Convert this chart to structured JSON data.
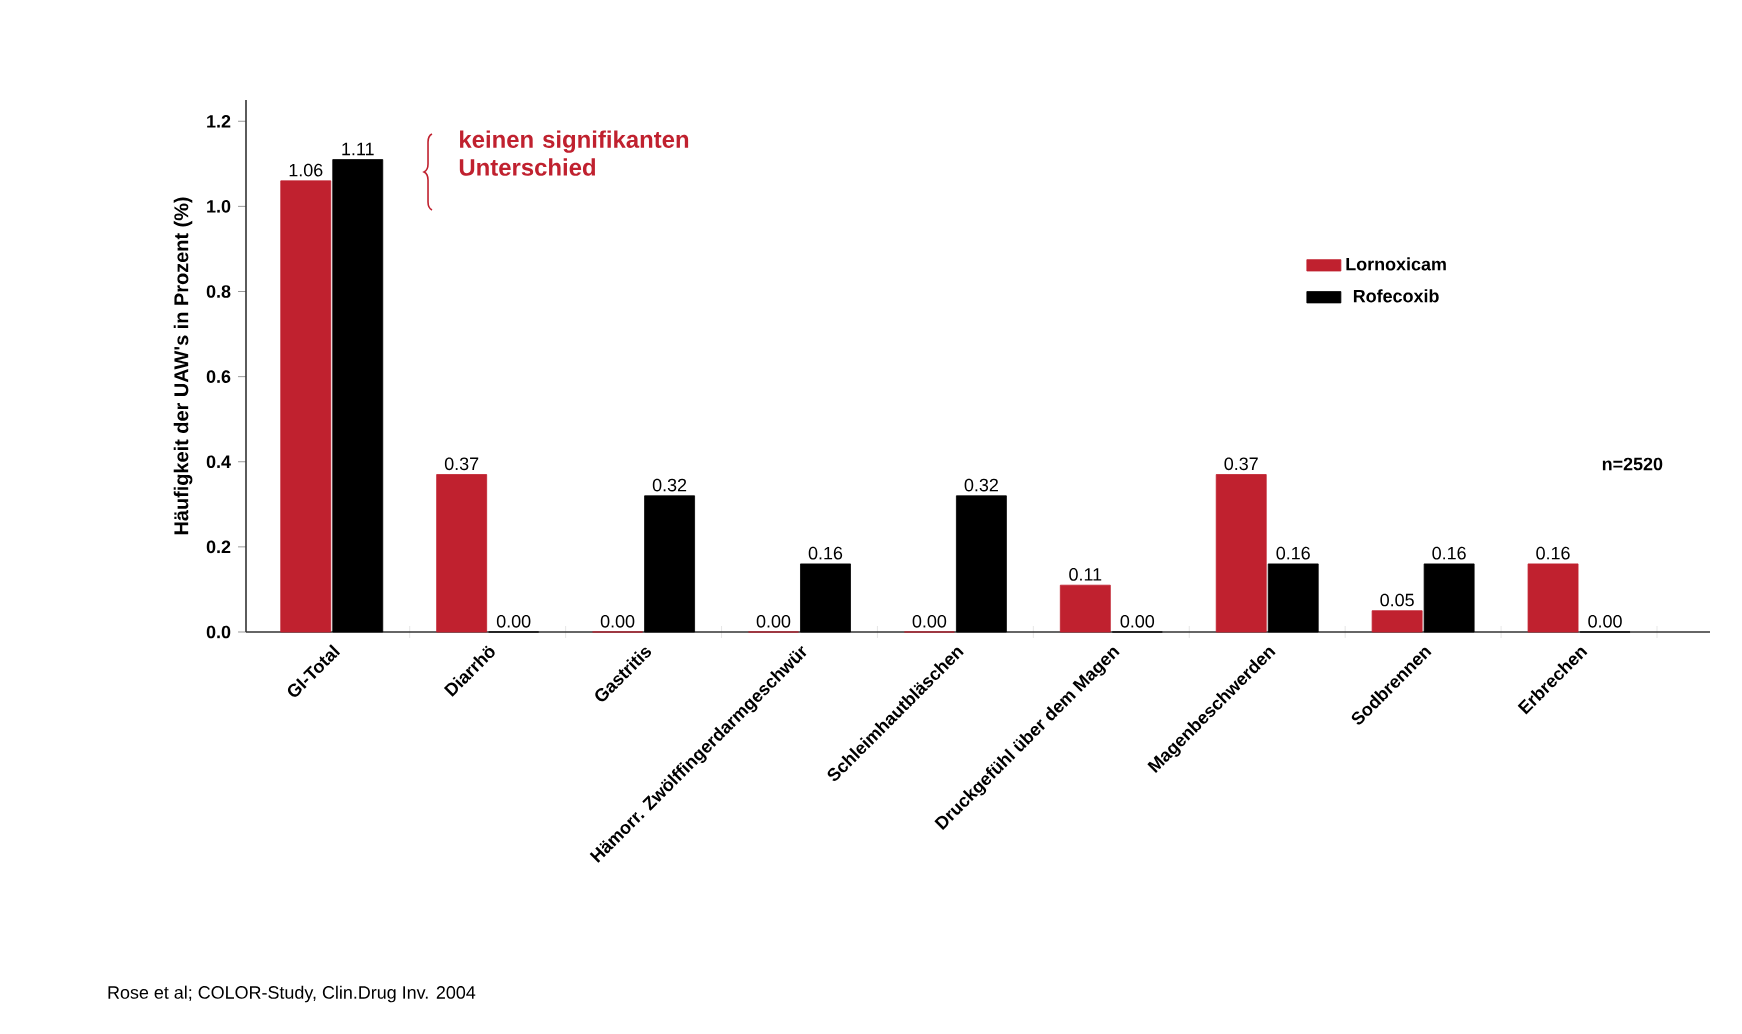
{
  "chart_data": {
    "type": "bar",
    "ylabel": "Häufigkeit der UAW's in Prozent (%)",
    "categories": [
      "GI-Total",
      "Diarrhö",
      "Gastritis",
      "Hämorr. Zwölffingerdarmgeschwür",
      "Schleimhautbläschen",
      "Druckgefühl über dem Magen",
      "Magenbeschwerden",
      "Sodbrennen",
      "Erbrechen"
    ],
    "series": [
      {
        "name": "Lornoxicam",
        "color": "#c0212f",
        "values": [
          1.06,
          0.37,
          0,
          0,
          0,
          0.11,
          0.37,
          0.05,
          0.16
        ],
        "value_labels": [
          "1.06",
          "0.37",
          "0.00",
          "0.00",
          "0.00",
          "0.11",
          "0.37",
          "0.05",
          "0.16"
        ]
      },
      {
        "name": "Rofecoxib",
        "color": "#000000",
        "values": [
          1.11,
          0,
          0.32,
          0.16,
          0.32,
          0,
          0.16,
          0.16,
          0
        ],
        "value_labels": [
          "1.11",
          "0.00",
          "0.32",
          "0.16",
          "0.32",
          "0.00",
          "0.16",
          "0.16",
          "0.00"
        ]
      }
    ],
    "ylim": [
      0,
      1.25
    ],
    "yticks": [
      {
        "value": 0,
        "label": "0.0"
      },
      0.2,
      0.4,
      0.6,
      0.8,
      {
        "value": 1,
        "label": "1.0"
      },
      1.2
    ],
    "legend": "right",
    "annotations": [
      "keinen signifikanten Unterschied",
      "n=2520",
      "Rose et al; COLOR-Study, Clin.Drug Inv. 2004"
    ]
  }
}
